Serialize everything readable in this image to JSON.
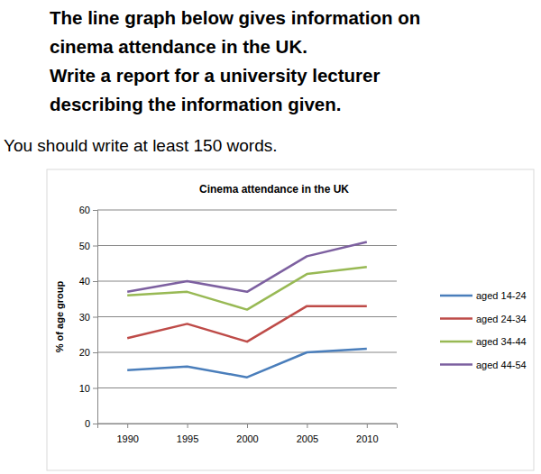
{
  "chart_data": {
    "type": "line",
    "title": "Cinema attendance in the UK",
    "annotations": [
      "The line graph below gives information on",
      "cinema attendance in the UK.",
      "Write a report for a university lecturer",
      "describing the information given.",
      "You should write at least 150 words."
    ],
    "y_label": "% of age group",
    "categories": [
      "1990",
      "1995",
      "2000",
      "2005",
      "2010"
    ],
    "series": [
      {
        "name": "aged 14-24",
        "color": "#4a7ebb",
        "values": [
          15,
          16,
          13,
          20,
          21
        ]
      },
      {
        "name": "aged 24-34",
        "color": "#be4b48",
        "values": [
          24,
          28,
          23,
          33,
          33
        ]
      },
      {
        "name": "aged 34-44",
        "color": "#98b954",
        "values": [
          36,
          37,
          32,
          42,
          44
        ]
      },
      {
        "name": "aged 44-54",
        "color": "#7d60a0",
        "values": [
          37,
          40,
          37,
          47,
          51
        ]
      }
    ],
    "ylim": [
      0,
      60
    ],
    "yticks": [
      0,
      10,
      20,
      30,
      40,
      50,
      60
    ],
    "grid": true,
    "legend": "right"
  }
}
